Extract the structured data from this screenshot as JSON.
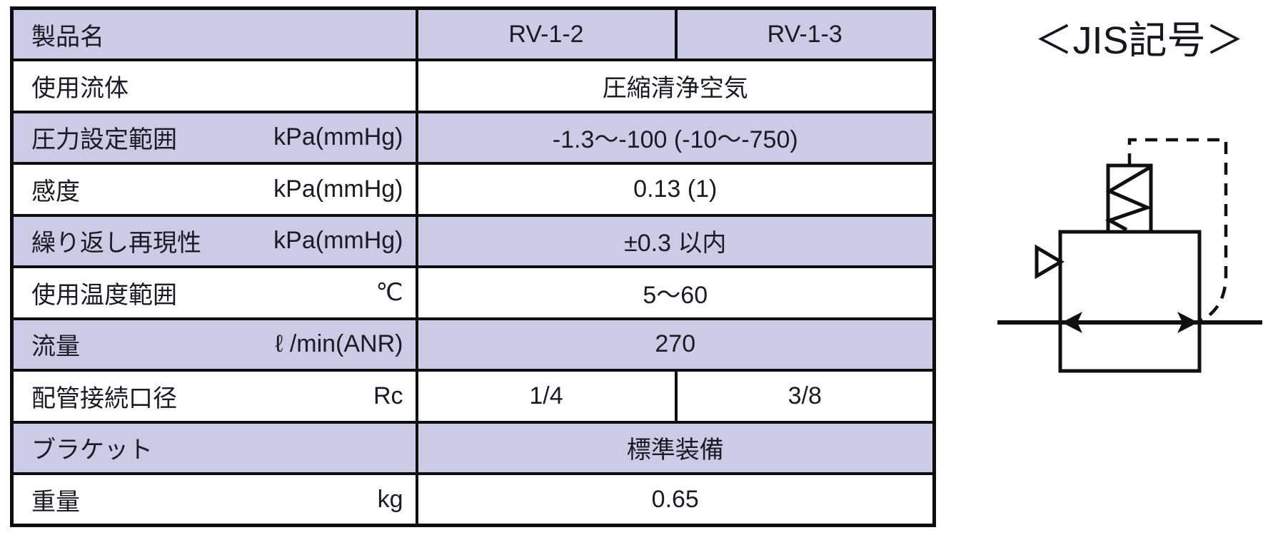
{
  "jis": {
    "heading": "＜JIS記号＞",
    "symbol_description": "relief-valve JIS symbol: body square, spring box, pilot dashed line, vent triangle, double-headed flow arrow"
  },
  "table": {
    "rows": [
      {
        "label": "製品名",
        "unit": "",
        "values": [
          "RV-1-2",
          "RV-1-3"
        ],
        "shaded": true
      },
      {
        "label": "使用流体",
        "unit": "",
        "values": [
          "圧縮清浄空気"
        ],
        "shaded": false
      },
      {
        "label": "圧力設定範囲",
        "unit": "kPa(mmHg)",
        "values": [
          "-1.3～-100 (-10～-750)"
        ],
        "shaded": true
      },
      {
        "label": "感度",
        "unit": "kPa(mmHg)",
        "values": [
          "0.13 (1)"
        ],
        "shaded": false
      },
      {
        "label": "繰り返し再現性",
        "unit": "kPa(mmHg)",
        "values": [
          "±0.3 以内"
        ],
        "shaded": true
      },
      {
        "label": "使用温度範囲",
        "unit": "℃",
        "values": [
          "5～60"
        ],
        "shaded": false
      },
      {
        "label": "流量",
        "unit": "ℓ /min(ANR)",
        "values": [
          "270"
        ],
        "shaded": true
      },
      {
        "label": "配管接続口径",
        "unit": "Rc",
        "values": [
          "1/4",
          "3/8"
        ],
        "shaded": false
      },
      {
        "label": "ブラケット",
        "unit": "",
        "values": [
          "標準装備"
        ],
        "shaded": true
      },
      {
        "label": "重量",
        "unit": "kg",
        "values": [
          "0.65"
        ],
        "shaded": false
      }
    ]
  },
  "colors": {
    "row_shaded": "#cbcbe6",
    "row_plain": "#ffffff",
    "border": "#0e0e0e",
    "text": "#1b1b26"
  }
}
